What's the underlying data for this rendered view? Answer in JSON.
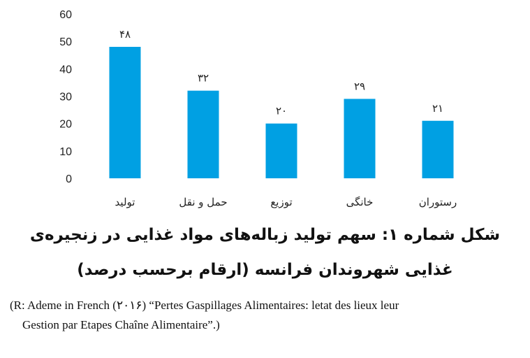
{
  "chart_data": {
    "type": "bar",
    "categories": [
      "تولید",
      "حمل و نقل",
      "توزیع",
      "خانگی",
      "رستوران"
    ],
    "values": [
      48,
      32,
      20,
      29,
      21
    ],
    "data_labels": [
      "۴۸",
      "۳۲",
      "۲۰",
      "۲۹",
      "۲۱"
    ],
    "yticks": [
      "0",
      "10",
      "20",
      "30",
      "40",
      "50",
      "60"
    ],
    "ylim": [
      0,
      60
    ],
    "grid": false,
    "bar_color": "#00a0e3",
    "title": ""
  },
  "caption": {
    "line1": "شکل شماره ۱: سهم تولید زباله‌های مواد غذایی در زنجیره‌ی",
    "line2": "غذایی شهروندان فرانسه (ارقام برحسب درصد)"
  },
  "source": {
    "line1": "(R: Ademe in French (۲۰۱۶) “Pertes Gaspillages Alimentaires: letat des lieux leur",
    "line2": "Gestion par Etapes Chaîne Alimentaire”.)"
  }
}
